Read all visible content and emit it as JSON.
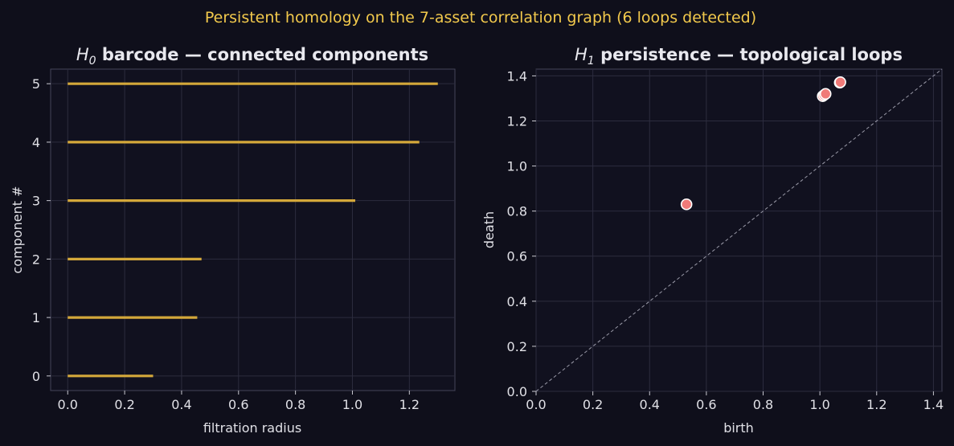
{
  "suptitle": "Persistent homology on the 7-asset correlation graph (6 loops detected)",
  "colors": {
    "background": "#0f0f1b",
    "suptitle": "#f2c94c",
    "bar": "#d4a83a",
    "point_fill": "#f07a78",
    "point_edge": "#ffffff",
    "diagonal": "#9a9aa8",
    "text": "#e0e0e6"
  },
  "chart_data": [
    {
      "type": "bar",
      "orientation": "horizontal",
      "title_symbol": "H",
      "title_sub": "0",
      "title_rest": " barcode — connected components",
      "xlabel": "filtration radius",
      "ylabel": "component #",
      "xlim": [
        -0.06,
        1.36
      ],
      "ylim": [
        -0.25,
        5.25
      ],
      "xticks": [
        "0.0",
        "0.2",
        "0.4",
        "0.6",
        "0.8",
        "1.0",
        "1.2"
      ],
      "yticks": [
        "0",
        "1",
        "2",
        "3",
        "4",
        "5"
      ],
      "grid": true,
      "bars": [
        {
          "component": 0,
          "birth": 0.0,
          "death": 0.3
        },
        {
          "component": 1,
          "birth": 0.0,
          "death": 0.455
        },
        {
          "component": 2,
          "birth": 0.0,
          "death": 0.47
        },
        {
          "component": 3,
          "birth": 0.0,
          "death": 1.01
        },
        {
          "component": 4,
          "birth": 0.0,
          "death": 1.235
        },
        {
          "component": 5,
          "birth": 0.0,
          "death": 1.3
        }
      ]
    },
    {
      "type": "scatter",
      "title_symbol": "H",
      "title_sub": "1",
      "title_rest": " persistence — topological loops",
      "xlabel": "birth",
      "ylabel": "death",
      "xlim": [
        0,
        1.43
      ],
      "ylim": [
        0,
        1.43
      ],
      "xticks": [
        "0.0",
        "0.2",
        "0.4",
        "0.6",
        "0.8",
        "1.0",
        "1.2",
        "1.4"
      ],
      "yticks": [
        "0.0",
        "0.2",
        "0.4",
        "0.6",
        "0.8",
        "1.0",
        "1.2",
        "1.4"
      ],
      "grid": true,
      "diagonal": true,
      "points": [
        {
          "birth": 0.53,
          "death": 0.83
        },
        {
          "birth": 1.01,
          "death": 1.31
        },
        {
          "birth": 1.015,
          "death": 1.315
        },
        {
          "birth": 1.02,
          "death": 1.32
        },
        {
          "birth": 1.07,
          "death": 1.37
        },
        {
          "birth": 1.072,
          "death": 1.372
        }
      ]
    }
  ]
}
